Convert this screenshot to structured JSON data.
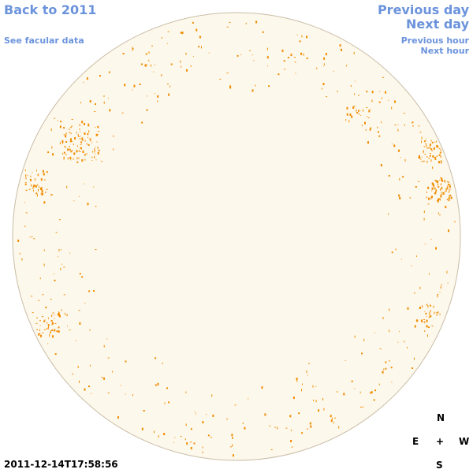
{
  "links": {
    "back": "Back to 2011",
    "facular": "See facular data",
    "previous_day": "Previous day",
    "next_day": "Next day",
    "previous_hour": "Previous hour",
    "next_hour": "Next hour"
  },
  "timestamp": "2011-12-14T17:58:56",
  "compass": {
    "north": "N",
    "east": "E",
    "center": "+",
    "west": "W",
    "south": "S"
  }
}
